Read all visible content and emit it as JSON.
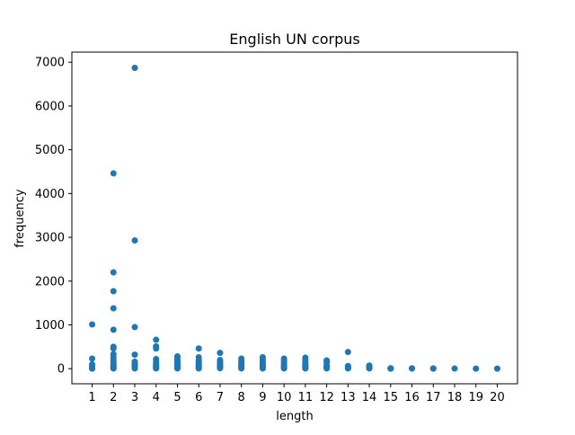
{
  "chart_data": {
    "type": "scatter",
    "title": "English UN corpus",
    "xlabel": "length",
    "ylabel": "frequency",
    "xlim": [
      0.05,
      20.95
    ],
    "ylim": [
      -345,
      7230
    ],
    "x_ticks": [
      1,
      2,
      3,
      4,
      5,
      6,
      7,
      8,
      9,
      10,
      11,
      12,
      13,
      14,
      15,
      16,
      17,
      18,
      19,
      20
    ],
    "y_ticks": [
      0,
      1000,
      2000,
      3000,
      4000,
      5000,
      6000,
      7000
    ],
    "marker_color": "#1f77b4",
    "grid": false,
    "points": [
      [
        1,
        1010
      ],
      [
        1,
        230
      ],
      [
        1,
        100
      ],
      [
        1,
        60
      ],
      [
        1,
        30
      ],
      [
        1,
        10
      ],
      [
        1,
        2
      ],
      [
        2,
        4460
      ],
      [
        2,
        2200
      ],
      [
        2,
        1770
      ],
      [
        2,
        1380
      ],
      [
        2,
        890
      ],
      [
        2,
        500
      ],
      [
        2,
        460
      ],
      [
        2,
        330
      ],
      [
        2,
        260
      ],
      [
        2,
        200
      ],
      [
        2,
        150
      ],
      [
        2,
        100
      ],
      [
        2,
        70
      ],
      [
        2,
        40
      ],
      [
        2,
        20
      ],
      [
        2,
        5
      ],
      [
        3,
        6870
      ],
      [
        3,
        2930
      ],
      [
        3,
        950
      ],
      [
        3,
        320
      ],
      [
        3,
        160
      ],
      [
        3,
        120
      ],
      [
        3,
        90
      ],
      [
        3,
        60
      ],
      [
        3,
        40
      ],
      [
        3,
        20
      ],
      [
        3,
        5
      ],
      [
        4,
        660
      ],
      [
        4,
        510
      ],
      [
        4,
        460
      ],
      [
        4,
        220
      ],
      [
        4,
        170
      ],
      [
        4,
        130
      ],
      [
        4,
        90
      ],
      [
        4,
        60
      ],
      [
        4,
        40
      ],
      [
        4,
        20
      ],
      [
        4,
        5
      ],
      [
        5,
        280
      ],
      [
        5,
        230
      ],
      [
        5,
        180
      ],
      [
        5,
        150
      ],
      [
        5,
        110
      ],
      [
        5,
        80
      ],
      [
        5,
        60
      ],
      [
        5,
        40
      ],
      [
        5,
        20
      ],
      [
        5,
        5
      ],
      [
        6,
        460
      ],
      [
        6,
        260
      ],
      [
        6,
        200
      ],
      [
        6,
        160
      ],
      [
        6,
        120
      ],
      [
        6,
        90
      ],
      [
        6,
        60
      ],
      [
        6,
        40
      ],
      [
        6,
        20
      ],
      [
        6,
        5
      ],
      [
        7,
        360
      ],
      [
        7,
        200
      ],
      [
        7,
        160
      ],
      [
        7,
        130
      ],
      [
        7,
        100
      ],
      [
        7,
        70
      ],
      [
        7,
        50
      ],
      [
        7,
        30
      ],
      [
        7,
        10
      ],
      [
        8,
        230
      ],
      [
        8,
        180
      ],
      [
        8,
        140
      ],
      [
        8,
        110
      ],
      [
        8,
        80
      ],
      [
        8,
        60
      ],
      [
        8,
        40
      ],
      [
        8,
        20
      ],
      [
        8,
        5
      ],
      [
        9,
        260
      ],
      [
        9,
        220
      ],
      [
        9,
        180
      ],
      [
        9,
        140
      ],
      [
        9,
        110
      ],
      [
        9,
        80
      ],
      [
        9,
        60
      ],
      [
        9,
        40
      ],
      [
        9,
        20
      ],
      [
        9,
        5
      ],
      [
        10,
        230
      ],
      [
        10,
        190
      ],
      [
        10,
        150
      ],
      [
        10,
        110
      ],
      [
        10,
        80
      ],
      [
        10,
        60
      ],
      [
        10,
        40
      ],
      [
        10,
        20
      ],
      [
        10,
        5
      ],
      [
        11,
        250
      ],
      [
        11,
        190
      ],
      [
        11,
        130
      ],
      [
        11,
        90
      ],
      [
        11,
        60
      ],
      [
        11,
        40
      ],
      [
        11,
        20
      ],
      [
        11,
        5
      ],
      [
        12,
        190
      ],
      [
        12,
        140
      ],
      [
        12,
        70
      ],
      [
        12,
        40
      ],
      [
        12,
        20
      ],
      [
        12,
        5
      ],
      [
        13,
        380
      ],
      [
        13,
        60
      ],
      [
        13,
        40
      ],
      [
        13,
        20
      ],
      [
        13,
        5
      ],
      [
        14,
        70
      ],
      [
        14,
        50
      ],
      [
        14,
        30
      ],
      [
        14,
        15
      ],
      [
        14,
        5
      ],
      [
        15,
        10
      ],
      [
        15,
        5
      ],
      [
        15,
        2
      ],
      [
        16,
        8
      ],
      [
        16,
        3
      ],
      [
        17,
        6
      ],
      [
        17,
        2
      ],
      [
        18,
        3
      ],
      [
        19,
        2
      ],
      [
        20,
        2
      ]
    ]
  }
}
